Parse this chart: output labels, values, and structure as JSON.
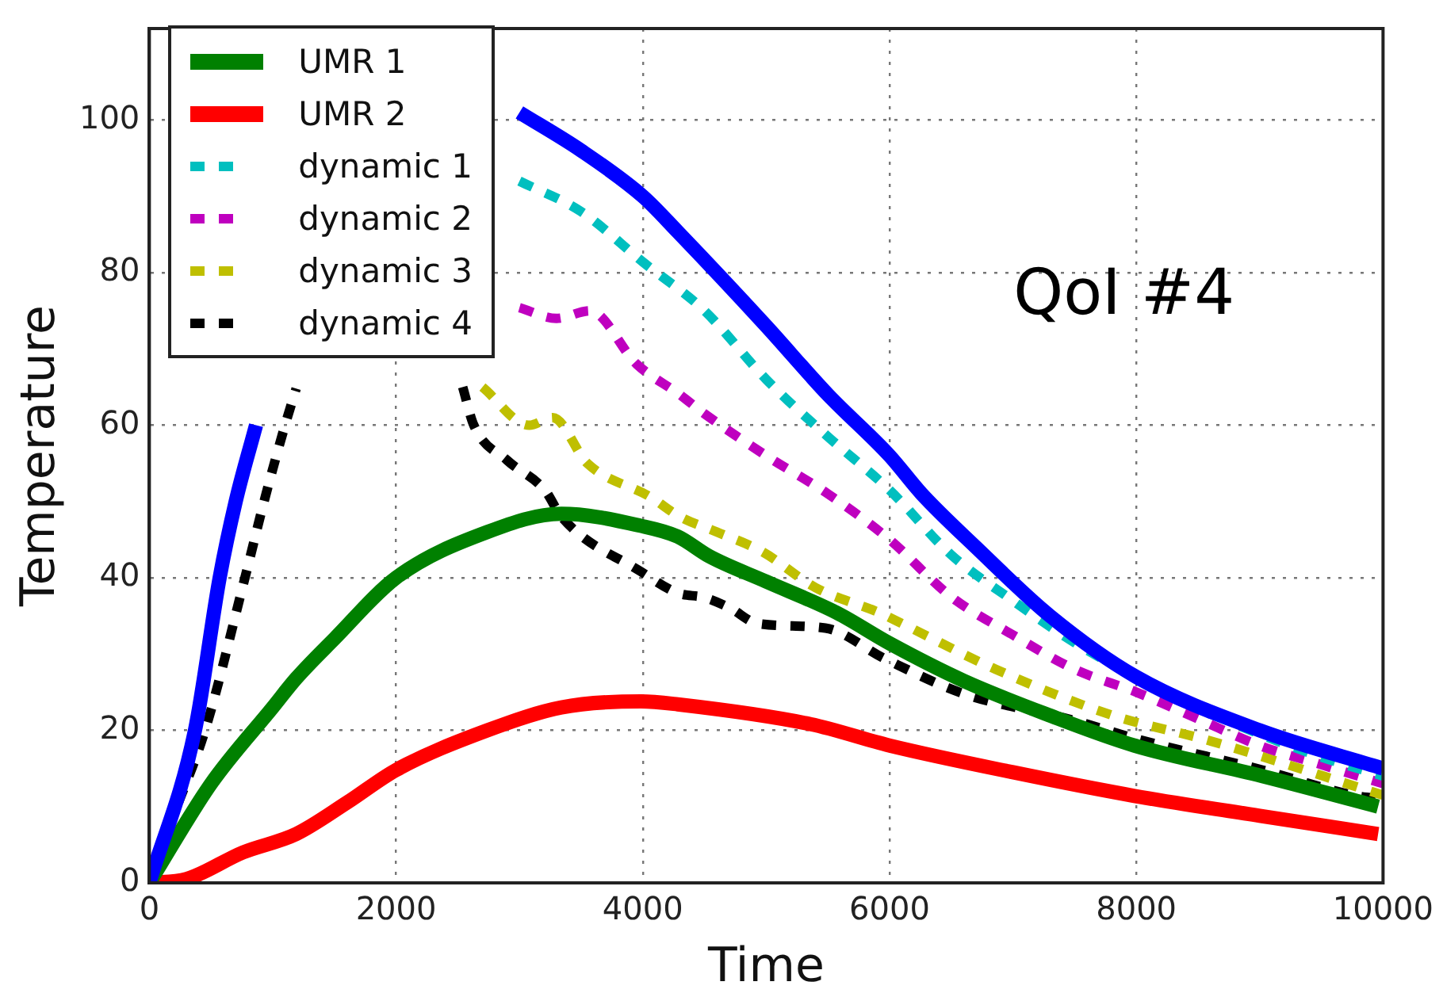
{
  "chart_data": {
    "type": "line",
    "xlabel": "Time",
    "ylabel": "Temperature",
    "annotations": [
      "QoI #4"
    ],
    "xlim": [
      0,
      10000
    ],
    "xticks": [
      0,
      2000,
      4000,
      6000,
      8000,
      10000
    ],
    "ylim": [
      0,
      112
    ],
    "yticks": [
      0,
      20,
      40,
      60,
      80,
      100
    ],
    "grid": true,
    "legend": "top left",
    "marker": "none",
    "series": [
      {
        "color": "#0000ff",
        "line_style": "solid",
        "x": [
          0,
          370,
          570,
          700,
          865,
          1800,
          3000,
          3500,
          4000,
          4280,
          5000,
          5500,
          6000,
          6260,
          6700,
          7300,
          8000,
          9000,
          10000
        ],
        "values": [
          0,
          20,
          40,
          50,
          60,
          null,
          101,
          96,
          90,
          85.4,
          73,
          64,
          56,
          51,
          44,
          35,
          27,
          20,
          15
        ]
      },
      {
        "name": "UMR 1",
        "color": "#008000",
        "line_style": "solid",
        "x": [
          0,
          500,
          1000,
          1190,
          1500,
          2000,
          2740,
          3340,
          3985,
          4283,
          4540,
          5000,
          5573,
          6000,
          6600,
          7290,
          7985,
          9020,
          9960
        ],
        "values": [
          0,
          13,
          23,
          26.8,
          32,
          40,
          46,
          48.4,
          46.8,
          45.4,
          42.8,
          39.5,
          35.4,
          31.4,
          26.5,
          22,
          18,
          14,
          10
        ]
      },
      {
        "name": "UMR 2",
        "color": "#ff0000",
        "line_style": "solid",
        "x": [
          0,
          300,
          760,
          1190,
          1600,
          2000,
          2740,
          3340,
          3985,
          4283,
          5360,
          6000,
          7000,
          7985,
          9000,
          9960
        ],
        "values": [
          0,
          0.5,
          4,
          6.4,
          10.5,
          14.8,
          20,
          23,
          23.8,
          23.4,
          20.8,
          18,
          14.5,
          11.4,
          8.8,
          6.4
        ]
      },
      {
        "name": "dynamic 1",
        "color": "#00bfbf",
        "line_style": "dashed",
        "x": [
          3000,
          3500,
          4000,
          4500,
          5000,
          5500,
          6000,
          6500,
          7000,
          7500,
          8000,
          8500,
          9000,
          9500,
          10000
        ],
        "values": [
          92,
          88,
          81.4,
          75,
          66,
          58.5,
          51.5,
          43,
          37,
          31.5,
          27,
          23,
          19.5,
          16.5,
          14
        ]
      },
      {
        "name": "dynamic 2",
        "color": "#bf00bf",
        "line_style": "dashed",
        "x": [
          3000,
          3300,
          3570,
          3950,
          4300,
          4500,
          5000,
          5500,
          6000,
          6500,
          7000,
          7500,
          8000,
          8500,
          9000,
          9500,
          10000
        ],
        "values": [
          75.4,
          74,
          75,
          68,
          64,
          61.5,
          56,
          51,
          45,
          37.5,
          32.5,
          28,
          25,
          21.5,
          18,
          15.5,
          13
        ]
      },
      {
        "name": "dynamic 3",
        "color": "#bfbf00",
        "line_style": "dashed",
        "x": [
          2700,
          3080,
          3270,
          3550,
          4060,
          4300,
          4600,
          4970,
          5400,
          5920,
          6100,
          6860,
          7800,
          8580,
          10000
        ],
        "values": [
          65,
          60,
          61,
          55,
          50.6,
          48,
          46,
          43.4,
          38.7,
          35.4,
          34,
          28,
          22,
          18.7,
          11.5
        ]
      },
      {
        "name": "dynamic 4",
        "color": "#000000",
        "line_style": "dashed",
        "x": [
          0,
          200,
          452,
          775,
          930,
          1100,
          1190,
          1800,
          2540,
          2630,
          2900,
          3210,
          3340,
          3985,
          4283,
          4500,
          4710,
          4930,
          5480,
          5960,
          6600,
          7470,
          8020,
          9020,
          9790,
          10000
        ],
        "values": [
          0,
          9,
          20,
          40,
          50,
          60,
          64.8,
          null,
          65,
          60,
          55.4,
          51.4,
          48,
          40.8,
          38,
          37.4,
          36,
          34,
          33.4,
          29.4,
          24.8,
          21.4,
          18.8,
          14.8,
          11.4,
          11
        ]
      }
    ]
  }
}
